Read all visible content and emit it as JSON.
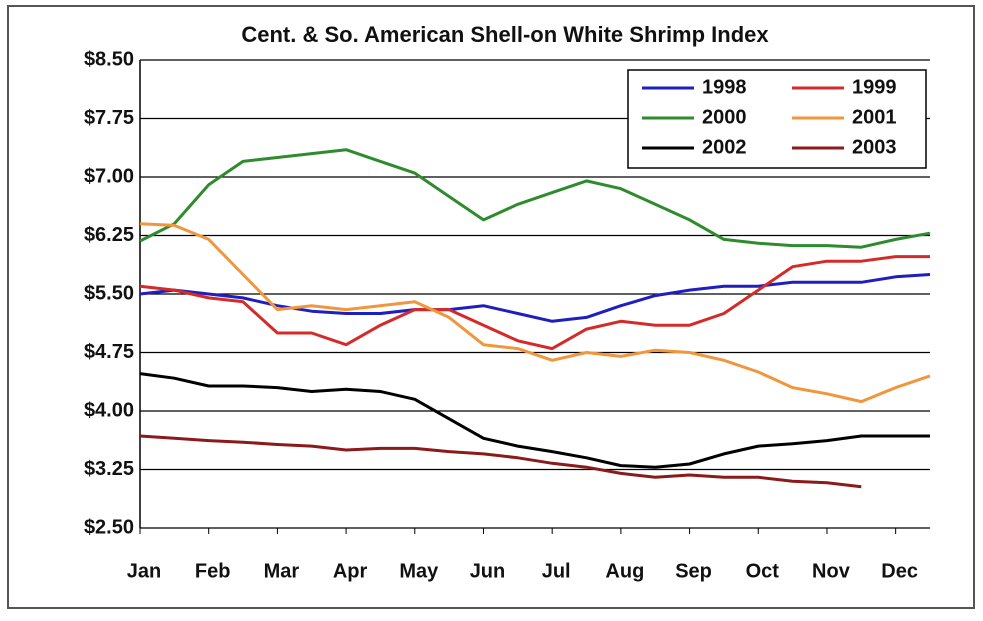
{
  "chart_data": {
    "type": "line",
    "title": "Cent. & So. American Shell-on White Shrimp Index",
    "categories": [
      "Jan",
      null,
      "Feb",
      null,
      "Mar",
      null,
      "Apr",
      null,
      "May",
      null,
      "Jun",
      null,
      "Jul",
      null,
      "Aug",
      null,
      "Sep",
      null,
      "Oct",
      null,
      "Nov",
      null,
      "Dec",
      null
    ],
    "ylim": [
      2.5,
      8.5
    ],
    "yticks": [
      {
        "value": 2.5,
        "label": "$2.50"
      },
      {
        "value": 3.25,
        "label": "$3.25"
      },
      {
        "value": 4,
        "label": "$4.00"
      },
      {
        "value": 4.75,
        "label": "$4.75"
      },
      {
        "value": 5.5,
        "label": "$5.50"
      },
      {
        "value": 6.25,
        "label": "$6.25"
      },
      {
        "value": 7,
        "label": "$7.00"
      },
      {
        "value": 7.75,
        "label": "$7.75"
      },
      {
        "value": 8.5,
        "label": "$8.50"
      }
    ],
    "grid": true,
    "legend": "top-right",
    "series": [
      {
        "name": "1998",
        "color": "#1f1fbf",
        "values": [
          5.5,
          5.55,
          5.5,
          5.45,
          5.35,
          5.28,
          5.25,
          5.25,
          5.3,
          5.3,
          5.35,
          5.25,
          5.15,
          5.2,
          5.35,
          5.48,
          5.55,
          5.6,
          5.6,
          5.65,
          5.65,
          5.65,
          5.72,
          5.75
        ]
      },
      {
        "name": "1999",
        "color": "#d42a2a",
        "values": [
          5.6,
          5.55,
          5.45,
          5.4,
          5.0,
          5.0,
          4.85,
          5.1,
          5.3,
          5.3,
          5.1,
          4.9,
          4.8,
          5.05,
          5.15,
          5.1,
          5.1,
          5.25,
          5.55,
          5.85,
          5.92,
          5.92,
          5.98,
          5.98
        ]
      },
      {
        "name": "2000",
        "color": "#2e8b2e",
        "values": [
          6.18,
          6.4,
          6.9,
          7.2,
          7.25,
          7.3,
          7.35,
          7.2,
          7.05,
          6.75,
          6.45,
          6.65,
          6.8,
          6.95,
          6.85,
          6.65,
          6.45,
          6.2,
          6.15,
          6.12,
          6.12,
          6.1,
          6.2,
          6.28
        ]
      },
      {
        "name": "2001",
        "color": "#f0963c",
        "values": [
          6.4,
          6.38,
          6.2,
          5.75,
          5.3,
          5.35,
          5.3,
          5.35,
          5.4,
          5.2,
          4.85,
          4.8,
          4.65,
          4.75,
          4.7,
          4.78,
          4.75,
          4.65,
          4.5,
          4.3,
          4.22,
          4.12,
          4.3,
          4.45
        ]
      },
      {
        "name": "2002",
        "color": "#000000",
        "values": [
          4.48,
          4.42,
          4.32,
          4.32,
          4.3,
          4.25,
          4.28,
          4.25,
          4.15,
          3.9,
          3.65,
          3.55,
          3.48,
          3.4,
          3.3,
          3.28,
          3.32,
          3.45,
          3.55,
          3.58,
          3.62,
          3.68,
          3.68,
          3.68
        ]
      },
      {
        "name": "2003",
        "color": "#8b1a1a",
        "values": [
          3.68,
          3.65,
          3.62,
          3.6,
          3.57,
          3.55,
          3.5,
          3.52,
          3.52,
          3.48,
          3.45,
          3.4,
          3.33,
          3.28,
          3.2,
          3.15,
          3.18,
          3.15,
          3.15,
          3.1,
          3.08,
          3.03,
          null,
          null
        ]
      }
    ]
  }
}
